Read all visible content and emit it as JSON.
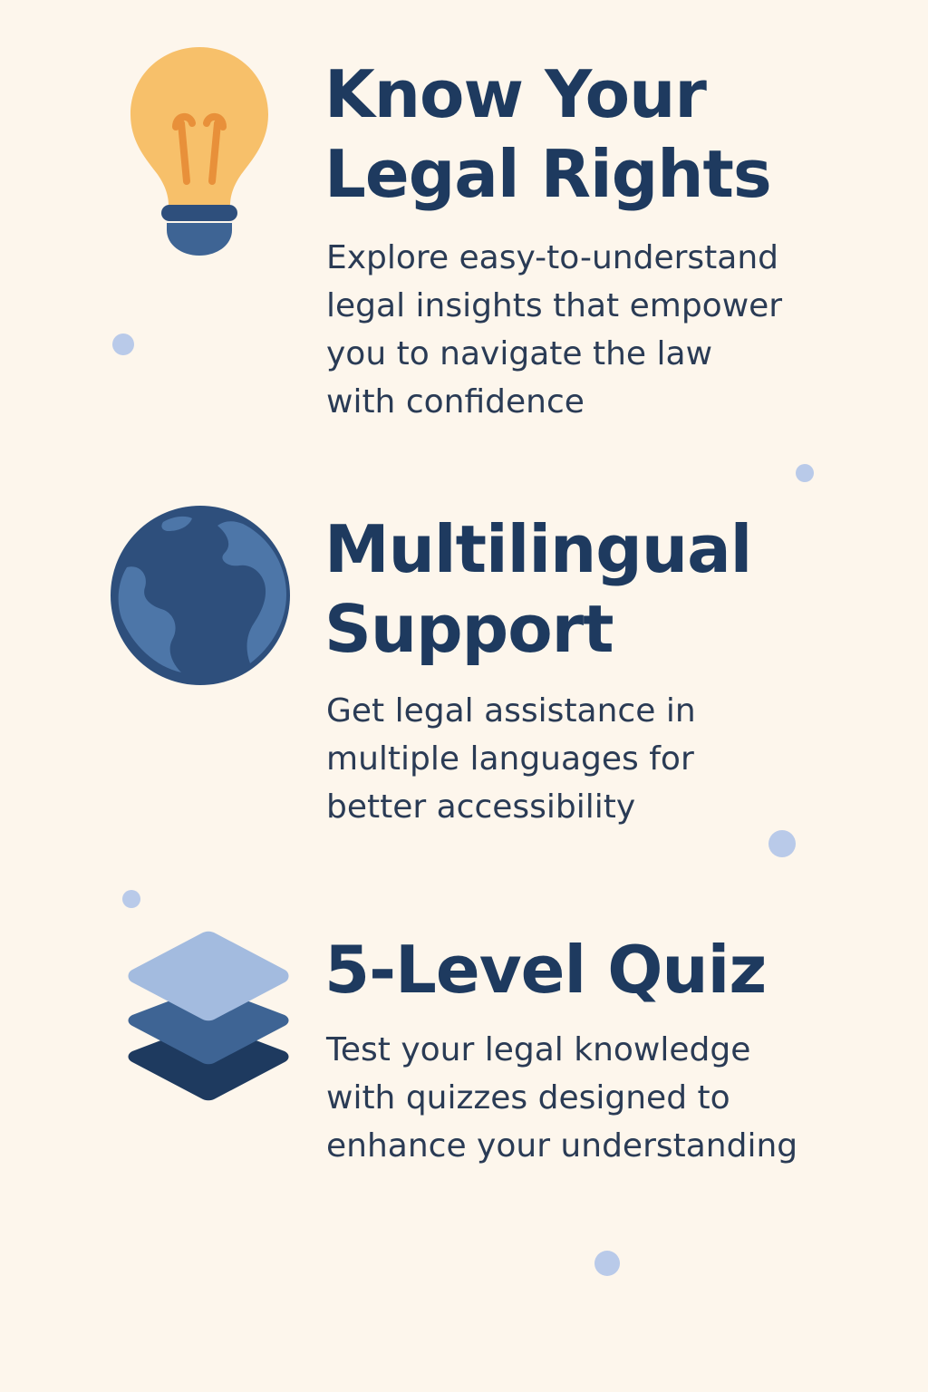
{
  "colors": {
    "background": "#fdf6ec",
    "heading": "#1e3a5f",
    "body_text": "#2a3b55",
    "accent_blue": "#3e6494",
    "bulb_yellow": "#f7c06a",
    "dot": "#b9cae9"
  },
  "features": [
    {
      "icon": "lightbulb-icon",
      "heading": [
        "Know Your",
        "Legal Rights"
      ],
      "description": [
        "Explore easy-to-understand",
        "legal insights that empower",
        "you to navigate the law",
        "with confidence"
      ]
    },
    {
      "icon": "globe-icon",
      "heading": [
        "Multilingual",
        "Support"
      ],
      "description": [
        "Get legal assistance in",
        "multiple languages for",
        "better accessibility"
      ]
    },
    {
      "icon": "layers-icon",
      "heading": [
        "5-Level Quiz"
      ],
      "description": [
        "Test your legal knowledge",
        "with quizzes designed to",
        "enhance your understanding"
      ]
    }
  ]
}
